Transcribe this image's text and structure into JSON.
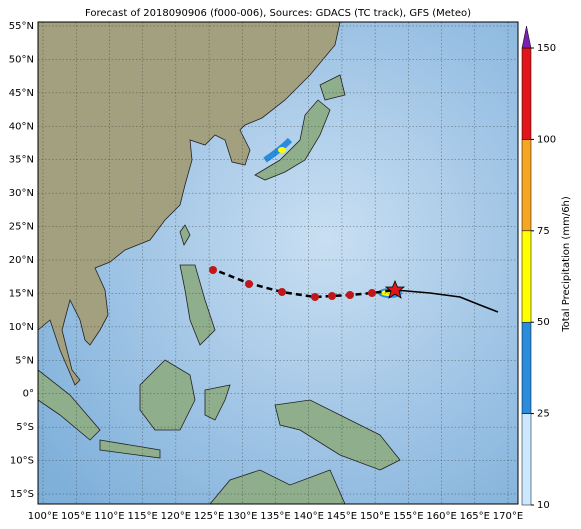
{
  "title": "Forecast of 2018090906 (f000-006), Sources: GDACS (TC track), GFS (Meteo)",
  "lat_labels": [
    "55°N",
    "50°N",
    "45°N",
    "40°N",
    "35°N",
    "30°N",
    "25°N",
    "20°N",
    "15°N",
    "10°N",
    "5°N",
    "0°",
    "5°S",
    "10°S",
    "15°S"
  ],
  "lon_labels": [
    "100°E",
    "105°E",
    "110°E",
    "115°E",
    "120°E",
    "125°E",
    "130°E",
    "135°E",
    "140°E",
    "145°E",
    "150°E",
    "155°E",
    "160°E",
    "165°E",
    "170°E"
  ],
  "colorbar": {
    "label": "Total Precipitation (mm/6h)",
    "ticks": [
      10,
      25,
      50,
      75,
      100,
      150
    ],
    "colors": [
      "#cce8ff",
      "#2a8cdc",
      "#ffff00",
      "#f5a623",
      "#e0161b"
    ],
    "extend_color": "#7a1fb0"
  }
}
